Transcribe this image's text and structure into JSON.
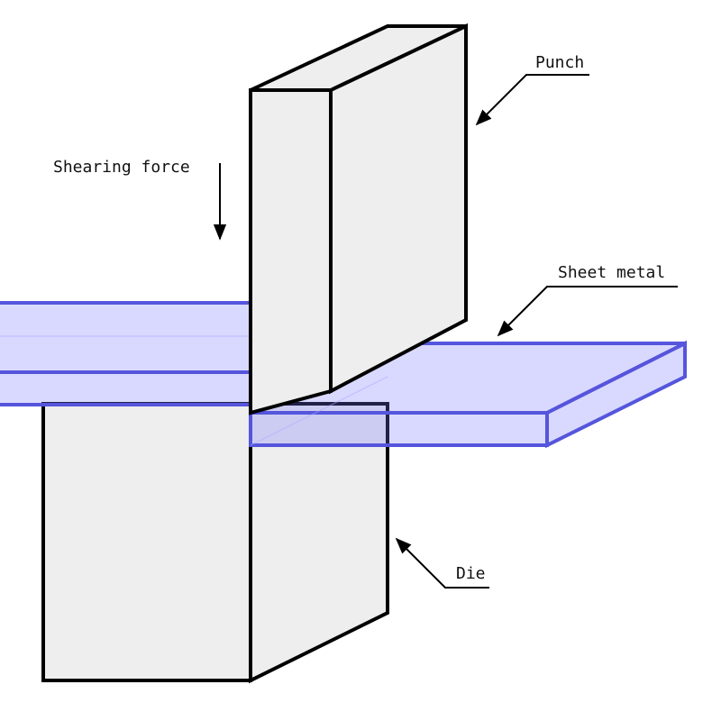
{
  "diagram": {
    "labels": {
      "punch": "Punch",
      "shearing_force": "Shearing force",
      "sheet_metal": "Sheet metal",
      "die": "Die"
    },
    "colors": {
      "solid_fill": "#eeeeee",
      "outline": "#000000",
      "sheet_fill": "#d5d5fb",
      "sheet_outline": "#5555dd"
    }
  }
}
